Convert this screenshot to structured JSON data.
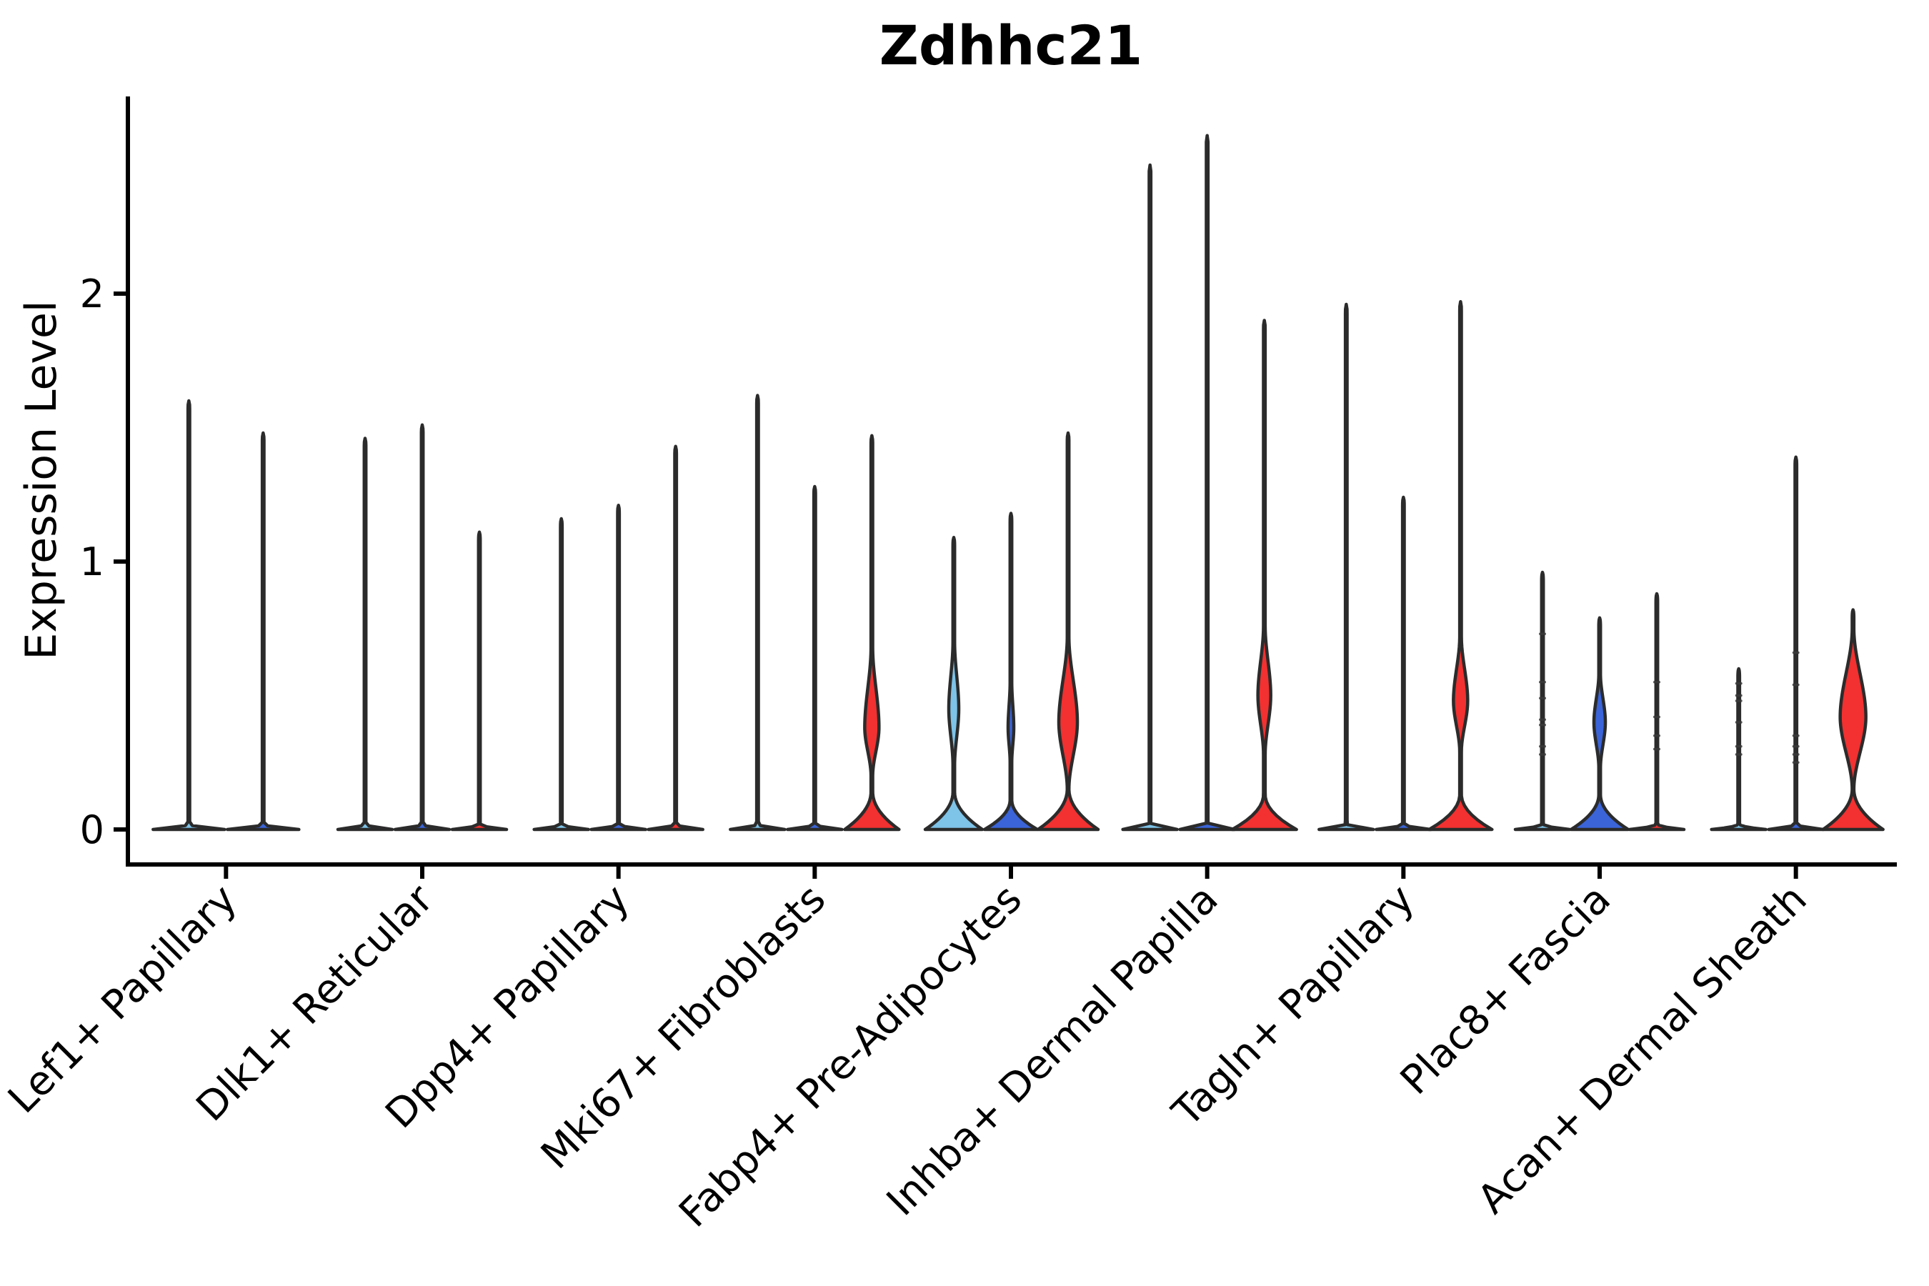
{
  "chart_data": {
    "type": "violin",
    "title": "Zdhhc21",
    "ylabel": "Expression Level",
    "xlabel": "",
    "yticks": [
      0,
      1,
      2
    ],
    "ylim": [
      -0.13,
      2.74
    ],
    "legend": "none",
    "grid": false,
    "colors": {
      "split1_lightblue": "#7EC3E8",
      "split2_blue": "#3A64D8",
      "split3_red": "#F23130",
      "outline": "#2B2B2B",
      "axis": "#000000",
      "point": "#3A3A3A"
    },
    "categories": [
      "Lef1+ Papillary",
      "Dlk1+ Reticular",
      "Dpp4+ Papillary",
      "Mki67+ Fibroblasts",
      "Fabp4+ Pre-Adipocytes",
      "Inhba+ Dermal Papilla",
      "Tagln+ Papillary",
      "Plac8+ Fascia",
      "Acan+ Dermal Sheath"
    ],
    "groups": [
      {
        "category": "Lef1+ Papillary",
        "violins": [
          {
            "split": "split1_lightblue",
            "max_expression": 1.6,
            "base_halfwidth": 50
          },
          {
            "split": "split2_blue",
            "max_expression": 1.48,
            "base_halfwidth": 50
          }
        ]
      },
      {
        "category": "Dlk1+ Reticular",
        "violins": [
          {
            "split": "split1_lightblue",
            "max_expression": 1.46,
            "base_halfwidth": 38
          },
          {
            "split": "split2_blue",
            "max_expression": 1.51,
            "base_halfwidth": 38
          },
          {
            "split": "split3_red",
            "max_expression": 1.11,
            "base_halfwidth": 38
          }
        ]
      },
      {
        "category": "Dpp4+ Papillary",
        "violins": [
          {
            "split": "split1_lightblue",
            "max_expression": 1.16,
            "base_halfwidth": 38
          },
          {
            "split": "split2_blue",
            "max_expression": 1.21,
            "base_halfwidth": 38
          },
          {
            "split": "split3_red",
            "max_expression": 1.43,
            "base_halfwidth": 38
          }
        ]
      },
      {
        "category": "Mki67+ Fibroblasts",
        "violins": [
          {
            "split": "split1_lightblue",
            "max_expression": 1.62,
            "base_halfwidth": 38
          },
          {
            "split": "split2_blue",
            "max_expression": 1.28,
            "base_halfwidth": 38
          },
          {
            "split": "split3_red",
            "max_expression": 1.47,
            "base_halfwidth": 38,
            "bulge": {
              "lo": 0.2,
              "hi": 0.68,
              "peak": 0.38,
              "halfwidth": 10
            },
            "flare": {
              "top": 0.14,
              "halfwidth": 38
            }
          }
        ]
      },
      {
        "category": "Fabp4+ Pre-Adipocytes",
        "violins": [
          {
            "split": "split1_lightblue",
            "max_expression": 1.09,
            "base_halfwidth": 40,
            "bulge": {
              "lo": 0.24,
              "hi": 0.7,
              "peak": 0.45,
              "halfwidth": 7
            },
            "flare": {
              "top": 0.14,
              "halfwidth": 40
            }
          },
          {
            "split": "split2_blue",
            "max_expression": 1.18,
            "base_halfwidth": 37,
            "bulge": {
              "lo": 0.25,
              "hi": 0.55,
              "peak": 0.38,
              "halfwidth": 4
            },
            "flare": {
              "top": 0.11,
              "halfwidth": 37
            }
          },
          {
            "split": "split3_red",
            "max_expression": 1.48,
            "base_halfwidth": 42,
            "bulge": {
              "lo": 0.15,
              "hi": 0.72,
              "peak": 0.4,
              "halfwidth": 13
            },
            "flare": {
              "top": 0.15,
              "halfwidth": 42
            }
          }
        ]
      },
      {
        "category": "Inhba+ Dermal Papilla",
        "violins": [
          {
            "split": "split1_lightblue",
            "max_expression": 2.48,
            "base_halfwidth": 38
          },
          {
            "split": "split2_blue",
            "max_expression": 2.59,
            "base_halfwidth": 38
          },
          {
            "split": "split3_red",
            "max_expression": 1.9,
            "base_halfwidth": 45,
            "bulge": {
              "lo": 0.28,
              "hi": 0.76,
              "peak": 0.5,
              "halfwidth": 9
            },
            "flare": {
              "top": 0.13,
              "halfwidth": 45
            }
          }
        ]
      },
      {
        "category": "Tagln+ Papillary",
        "violins": [
          {
            "split": "split1_lightblue",
            "max_expression": 1.96,
            "base_halfwidth": 38
          },
          {
            "split": "split2_blue",
            "max_expression": 1.24,
            "base_halfwidth": 38
          },
          {
            "split": "split3_red",
            "max_expression": 1.97,
            "base_halfwidth": 44,
            "bulge": {
              "lo": 0.29,
              "hi": 0.72,
              "peak": 0.48,
              "halfwidth": 10
            },
            "flare": {
              "top": 0.13,
              "halfwidth": 44
            }
          }
        ]
      },
      {
        "category": "Plac8+ Fascia",
        "violins": [
          {
            "split": "split1_lightblue",
            "max_expression": 0.96,
            "base_halfwidth": 38,
            "points": [
              0.73,
              0.55,
              0.49,
              0.41,
              0.39,
              0.31,
              0.28
            ]
          },
          {
            "split": "split2_blue",
            "max_expression": 0.79,
            "base_halfwidth": 40,
            "bulge": {
              "lo": 0.23,
              "hi": 0.58,
              "peak": 0.4,
              "halfwidth": 8
            },
            "flare": {
              "top": 0.13,
              "halfwidth": 40
            }
          },
          {
            "split": "split3_red",
            "max_expression": 0.88,
            "base_halfwidth": 38,
            "points": [
              0.55,
              0.42,
              0.35,
              0.3
            ]
          }
        ]
      },
      {
        "category": "Acan+ Dermal Sheath",
        "violins": [
          {
            "split": "split1_lightblue",
            "max_expression": 0.6,
            "base_halfwidth": 38,
            "points": [
              0.545,
              0.5,
              0.48,
              0.4,
              0.31,
              0.28
            ]
          },
          {
            "split": "split2_blue",
            "max_expression": 1.39,
            "base_halfwidth": 38,
            "points": [
              0.66,
              0.54,
              0.35,
              0.31,
              0.28,
              0.25
            ]
          },
          {
            "split": "split3_red",
            "max_expression": 0.82,
            "base_halfwidth": 42,
            "bulge": {
              "lo": 0.15,
              "hi": 0.75,
              "peak": 0.42,
              "halfwidth": 18
            },
            "flare": {
              "top": 0.15,
              "halfwidth": 42
            }
          }
        ]
      }
    ]
  }
}
